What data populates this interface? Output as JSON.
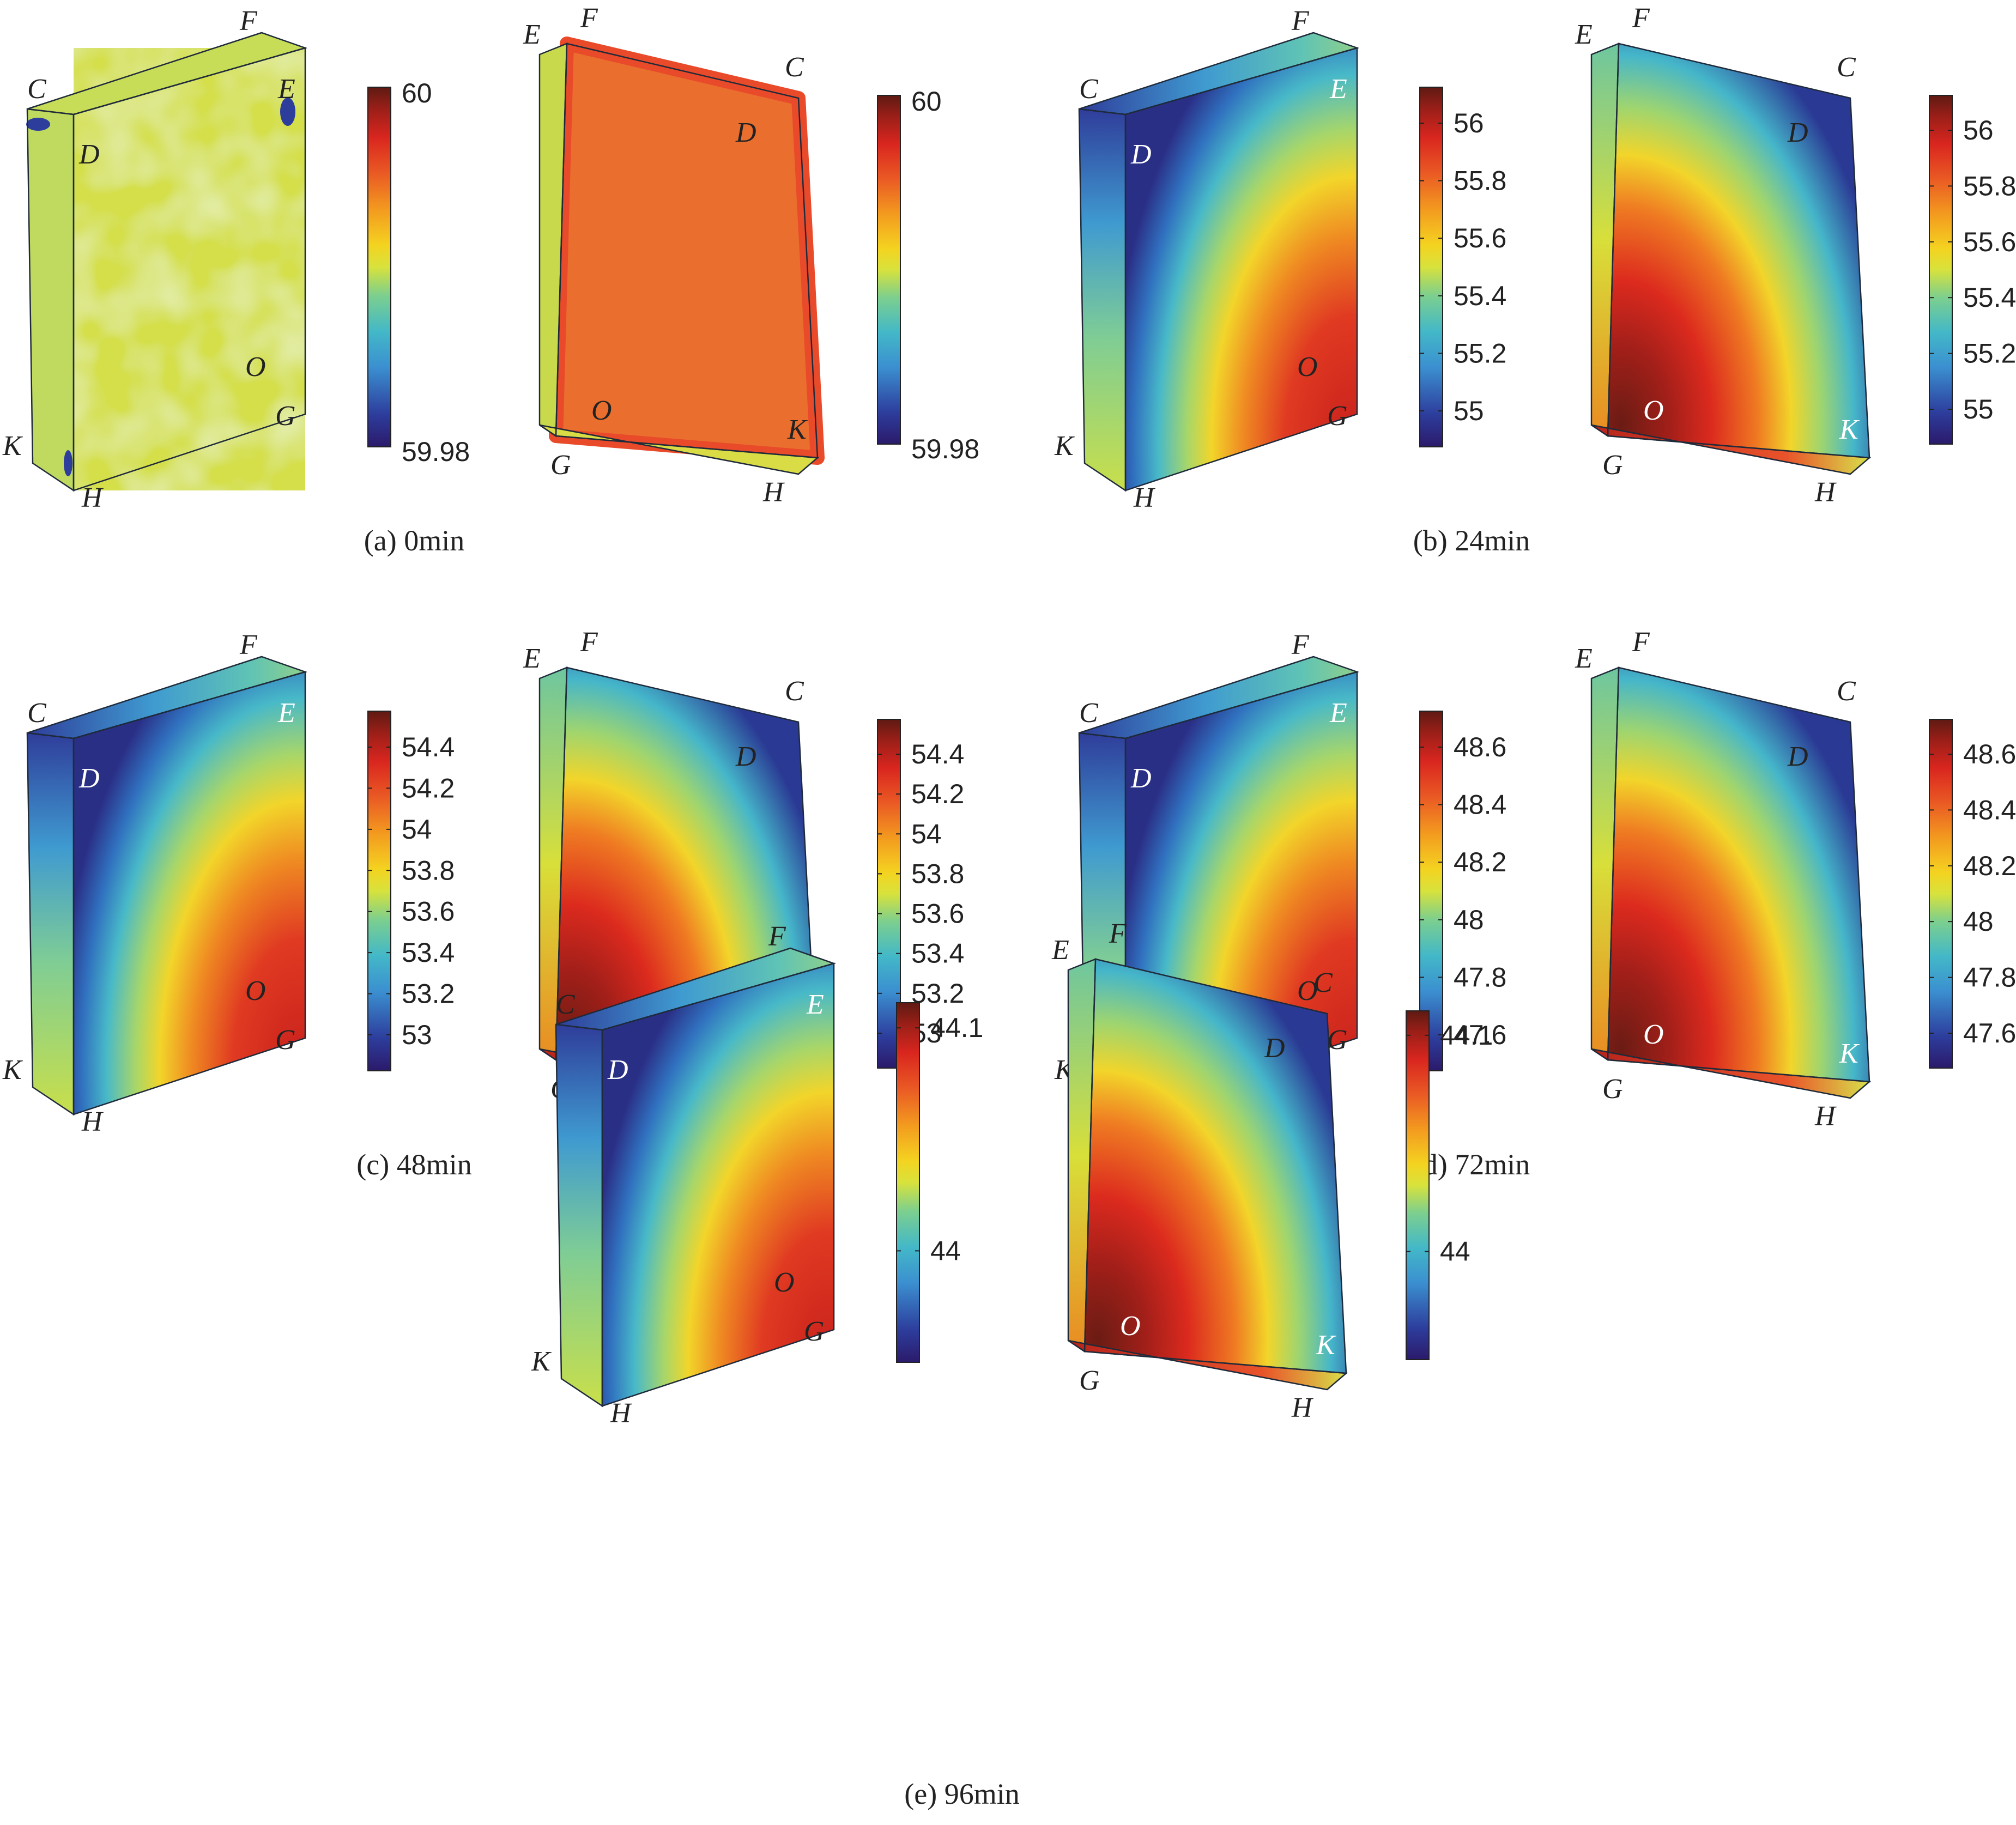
{
  "colors": {
    "jet": [
      "#2b1a6b",
      "#2d3d9c",
      "#3b8fd0",
      "#43b8c8",
      "#7ccf8e",
      "#d8e23c",
      "#f4d320",
      "#f39a1f",
      "#ea5a24",
      "#d9261f",
      "#9a1f18",
      "#5e1a12"
    ],
    "edge": "#1f2a3a",
    "label_dark": "#222222",
    "label_light": "#ffffff"
  },
  "vertices": {
    "C": "C",
    "D": "D",
    "E": "E",
    "F": "F",
    "G": "G",
    "H": "H",
    "K": "K",
    "O": "O"
  },
  "panels": [
    {
      "id": "a",
      "caption": "(a) 0min",
      "bars": [
        {
          "max_label": "60",
          "min_label": "59.98",
          "ticks": []
        },
        {
          "max_label": "60",
          "min_label": "59.98",
          "ticks": []
        }
      ]
    },
    {
      "id": "b",
      "caption": "(b) 24min",
      "bars": [
        {
          "ticks": [
            "56",
            "55.8",
            "55.6",
            "55.4",
            "55.2",
            "55"
          ]
        },
        {
          "ticks": [
            "56",
            "55.8",
            "55.6",
            "55.4",
            "55.2",
            "55"
          ]
        }
      ]
    },
    {
      "id": "c",
      "caption": "(c) 48min",
      "bars": [
        {
          "ticks": [
            "54.4",
            "54.2",
            "54",
            "53.8",
            "53.6",
            "53.4",
            "53.2",
            "53"
          ]
        },
        {
          "ticks": [
            "54.4",
            "54.2",
            "54",
            "53.8",
            "53.6",
            "53.4",
            "53.2",
            "53"
          ]
        }
      ]
    },
    {
      "id": "d",
      "caption": "(d) 72min",
      "bars": [
        {
          "ticks": [
            "48.6",
            "48.4",
            "48.2",
            "48",
            "47.8",
            "47.6"
          ]
        },
        {
          "ticks": [
            "48.6",
            "48.4",
            "48.2",
            "48",
            "47.8",
            "47.6"
          ]
        }
      ]
    },
    {
      "id": "e",
      "caption": "(e) 96min",
      "bars": [
        {
          "ticks": [
            "44.1",
            "44"
          ]
        },
        {
          "ticks": [
            "44.1",
            "44"
          ]
        }
      ]
    }
  ]
}
